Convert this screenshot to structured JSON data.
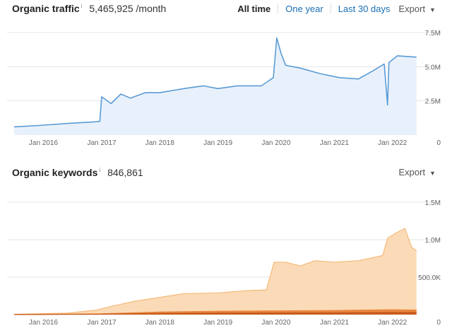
{
  "traffic": {
    "title": "Organic traffic",
    "info_mark": "i",
    "value": "5,465,925 /month",
    "ranges": [
      "All time",
      "One year",
      "Last 30 days"
    ],
    "active_range": "All time",
    "export_label": "Export",
    "export_chevron": "▼"
  },
  "keywords": {
    "title": "Organic keywords",
    "info_mark": "i",
    "value": "846,861",
    "export_label": "Export",
    "export_chevron": "▼"
  },
  "colors": {
    "traffic_line": "#5b9bd5",
    "traffic_fill": "#e8f1fb",
    "kw_fill_light": "#fbd9b3",
    "kw_line_light": "#f5b97a",
    "kw_fill_dark": "#e8833a",
    "kw_fill_darker": "#c45a1b",
    "grid": "#e6e6e6"
  },
  "chart_data": [
    {
      "type": "line",
      "title": "Organic traffic",
      "x_tick_labels": [
        "Jan 2016",
        "Jan 2017",
        "Jan 2018",
        "Jan 2019",
        "Jan 2020",
        "Jan 2021",
        "Jan 2022"
      ],
      "y_tick_labels": [
        "7.5M",
        "5.0M",
        "2.5M",
        "0"
      ],
      "ylim": [
        0,
        7500000
      ],
      "grid": true,
      "series": [
        {
          "values_by_date": [
            [
              "2015-07-01",
              600000
            ],
            [
              "2015-12-01",
              700000
            ],
            [
              "2016-06-01",
              850000
            ],
            [
              "2016-11-01",
              950000
            ],
            [
              "2016-12-20",
              1000000
            ],
            [
              "2017-01-01",
              2800000
            ],
            [
              "2017-03-01",
              2300000
            ],
            [
              "2017-05-01",
              3000000
            ],
            [
              "2017-07-01",
              2700000
            ],
            [
              "2017-10-01",
              3100000
            ],
            [
              "2018-01-01",
              3100000
            ],
            [
              "2018-06-01",
              3400000
            ],
            [
              "2018-10-01",
              3600000
            ],
            [
              "2019-01-01",
              3400000
            ],
            [
              "2019-05-01",
              3600000
            ],
            [
              "2019-10-01",
              3600000
            ],
            [
              "2019-12-15",
              4200000
            ],
            [
              "2020-01-05",
              7100000
            ],
            [
              "2020-02-01",
              6000000
            ],
            [
              "2020-03-01",
              5100000
            ],
            [
              "2020-06-01",
              4900000
            ],
            [
              "2020-10-01",
              4500000
            ],
            [
              "2021-02-01",
              4200000
            ],
            [
              "2021-06-01",
              4100000
            ],
            [
              "2021-09-01",
              4700000
            ],
            [
              "2021-11-10",
              5200000
            ],
            [
              "2021-12-01",
              2200000
            ],
            [
              "2021-12-10",
              5300000
            ],
            [
              "2022-02-01",
              5800000
            ],
            [
              "2022-06-01",
              5700000
            ]
          ]
        }
      ]
    },
    {
      "type": "area",
      "title": "Organic keywords",
      "x_tick_labels": [
        "Jan 2016",
        "Jan 2017",
        "Jan 2018",
        "Jan 2019",
        "Jan 2020",
        "Jan 2021",
        "Jan 2022"
      ],
      "y_tick_labels": [
        "1.5M",
        "1.0M",
        "500.0K",
        "0"
      ],
      "ylim": [
        0,
        1500000
      ],
      "grid": true,
      "series": [
        {
          "values_by_date": [
            [
              "2015-07-01",
              5000
            ],
            [
              "2016-06-01",
              20000
            ],
            [
              "2016-12-01",
              60000
            ],
            [
              "2017-03-01",
              110000
            ],
            [
              "2017-08-01",
              180000
            ],
            [
              "2018-01-01",
              230000
            ],
            [
              "2018-06-01",
              280000
            ],
            [
              "2019-01-01",
              290000
            ],
            [
              "2019-07-01",
              320000
            ],
            [
              "2019-11-01",
              330000
            ],
            [
              "2019-12-20",
              700000
            ],
            [
              "2020-03-01",
              700000
            ],
            [
              "2020-06-01",
              650000
            ],
            [
              "2020-09-01",
              720000
            ],
            [
              "2021-01-01",
              700000
            ],
            [
              "2021-06-01",
              720000
            ],
            [
              "2021-09-01",
              760000
            ],
            [
              "2021-11-01",
              790000
            ],
            [
              "2021-12-01",
              1020000
            ],
            [
              "2022-02-01",
              1100000
            ],
            [
              "2022-03-20",
              1150000
            ],
            [
              "2022-05-01",
              900000
            ],
            [
              "2022-06-01",
              850000
            ]
          ]
        },
        {
          "values_by_date": [
            [
              "2015-07-01",
              2000
            ],
            [
              "2017-01-01",
              10000
            ],
            [
              "2018-01-01",
              35000
            ],
            [
              "2019-01-01",
              45000
            ],
            [
              "2020-01-01",
              50000
            ],
            [
              "2021-01-01",
              55000
            ],
            [
              "2022-01-01",
              65000
            ],
            [
              "2022-06-01",
              60000
            ]
          ]
        },
        {
          "values_by_date": [
            [
              "2015-07-01",
              1000
            ],
            [
              "2017-01-01",
              5000
            ],
            [
              "2018-01-01",
              15000
            ],
            [
              "2019-01-01",
              20000
            ],
            [
              "2020-01-01",
              22000
            ],
            [
              "2021-01-01",
              24000
            ],
            [
              "2022-01-01",
              30000
            ],
            [
              "2022-06-01",
              28000
            ]
          ]
        }
      ]
    }
  ]
}
